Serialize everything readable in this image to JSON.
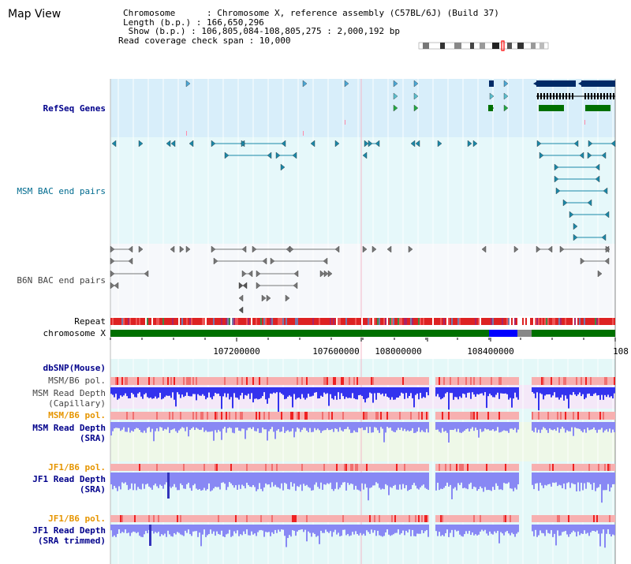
{
  "page": {
    "title": "Map View"
  },
  "info": {
    "chromosome_line": "Chromosome      : Chromosome X, reference assembly (C57BL/6J) (Build 37)",
    "length_line": "Length (b.p.) : 166,650,296",
    "show_line": " Show (b.p.) : 106,805,084-108,805,275 : 2,000,192 bp",
    "span_line": "Read coverage check span : 10,000"
  },
  "tracks": {
    "refseq": "RefSeq Genes",
    "msm_bac": "MSM BAC end pairs",
    "b6n_bac": "B6N BAC end pairs",
    "repeat": "Repeat",
    "chromosome": "chromosome X",
    "dbsnp": "dbSNP(Mouse)",
    "msm_b6_pol_1": "MSM/B6 pol.",
    "msm_depth_cap_1": "MSM Read Depth",
    "msm_depth_cap_2": "(Capillary)",
    "msm_b6_pol_2": "MSM/B6 pol.",
    "msm_depth_sra_1": "MSM Read Depth",
    "msm_depth_sra_2": "(SRA)",
    "jf1_b6_pol_1": "JF1/B6 pol.",
    "jf1_depth_1": "JF1 Read Depth",
    "jf1_depth_2": "(SRA)",
    "jf1_b6_pol_2": "JF1/B6 pol.",
    "jf1_trim_1": "JF1 Read Depth",
    "jf1_trim_2": "(SRA trimmed)"
  },
  "axis": {
    "ticks": [
      "107200000",
      "107600000",
      "108000000",
      "108400000",
      "108"
    ]
  },
  "colors": {
    "refseq_bg": "#d8eefa",
    "bac_bg": "#e6f8fa",
    "repeat_red": "#dd2222",
    "chrom_green": "#007000",
    "depth_blue": "#3333ee",
    "depth_light": "#8888f4",
    "pol_pink": "#f7b0b0"
  }
}
